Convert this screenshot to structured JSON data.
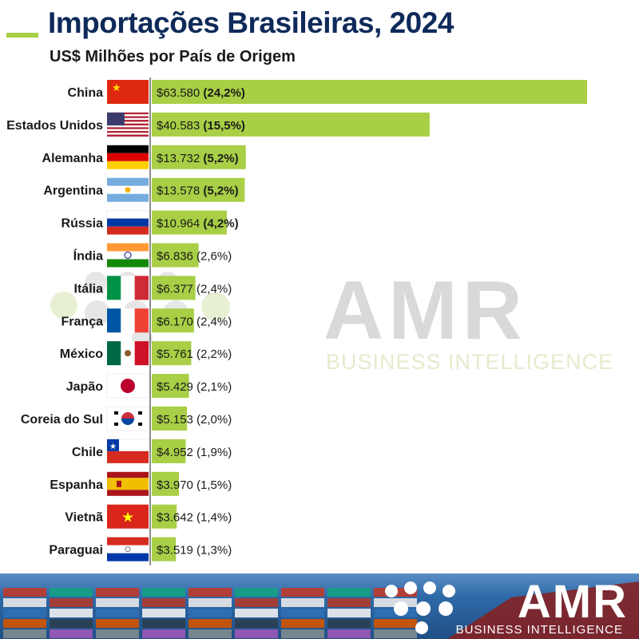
{
  "header": {
    "title": "Importações Brasileiras, 2024",
    "subtitle": "US$ Milhões por País de Origem"
  },
  "watermark": {
    "brand": "AMR",
    "tagline": "BUSINESS INTELLIGENCE"
  },
  "footer": {
    "brand": "AMR",
    "tagline": "BUSINESS INTELLIGENCE"
  },
  "colors": {
    "bar": "#a8cf45",
    "title": "#0e2a5a",
    "accent": "#a8cf45"
  },
  "chart_data": {
    "type": "bar",
    "orientation": "horizontal",
    "title": "Importações Brasileiras, 2024",
    "subtitle": "US$ Milhões por País de Origem",
    "categories": [
      "China",
      "Estados Unidos",
      "Alemanha",
      "Argentina",
      "Rússia",
      "Índia",
      "Itália",
      "França",
      "México",
      "Japão",
      "Coreia do Sul",
      "Chile",
      "Espanha",
      "Vietnã",
      "Paraguai"
    ],
    "flags": [
      "china-flag-icon",
      "usa-flag-icon",
      "germany-flag-icon",
      "argentina-flag-icon",
      "russia-flag-icon",
      "india-flag-icon",
      "italy-flag-icon",
      "france-flag-icon",
      "mexico-flag-icon",
      "japan-flag-icon",
      "south-korea-flag-icon",
      "chile-flag-icon",
      "spain-flag-icon",
      "vietnam-flag-icon",
      "paraguay-flag-icon"
    ],
    "values": [
      63580,
      40583,
      13732,
      13578,
      10964,
      6836,
      6377,
      6170,
      5761,
      5429,
      5153,
      4952,
      3970,
      3642,
      3519
    ],
    "value_labels": [
      "$63.580",
      "$40.583",
      "$13.732",
      "$13.578",
      "$10.964",
      "$6.836",
      "$6.377",
      "$6.170",
      "$5.761",
      "$5.429",
      "$5.153",
      "$4.952",
      "$3.970",
      "$3.642",
      "$3.519"
    ],
    "share_labels": [
      "(24,2%)",
      "(15,5%)",
      "(5,2%)",
      "(5,2%)",
      "(4,2%)",
      "(2,6%)",
      "(2,4%)",
      "(2,4%)",
      "(2,2%)",
      "(2,1%)",
      "(2,0%)",
      "(1,9%)",
      "(1,5%)",
      "(1,4%)",
      "(1,3%)"
    ],
    "bold_share": [
      true,
      true,
      true,
      true,
      true,
      false,
      false,
      false,
      false,
      false,
      false,
      false,
      false,
      false,
      false
    ],
    "grid": false,
    "legend": "none"
  }
}
